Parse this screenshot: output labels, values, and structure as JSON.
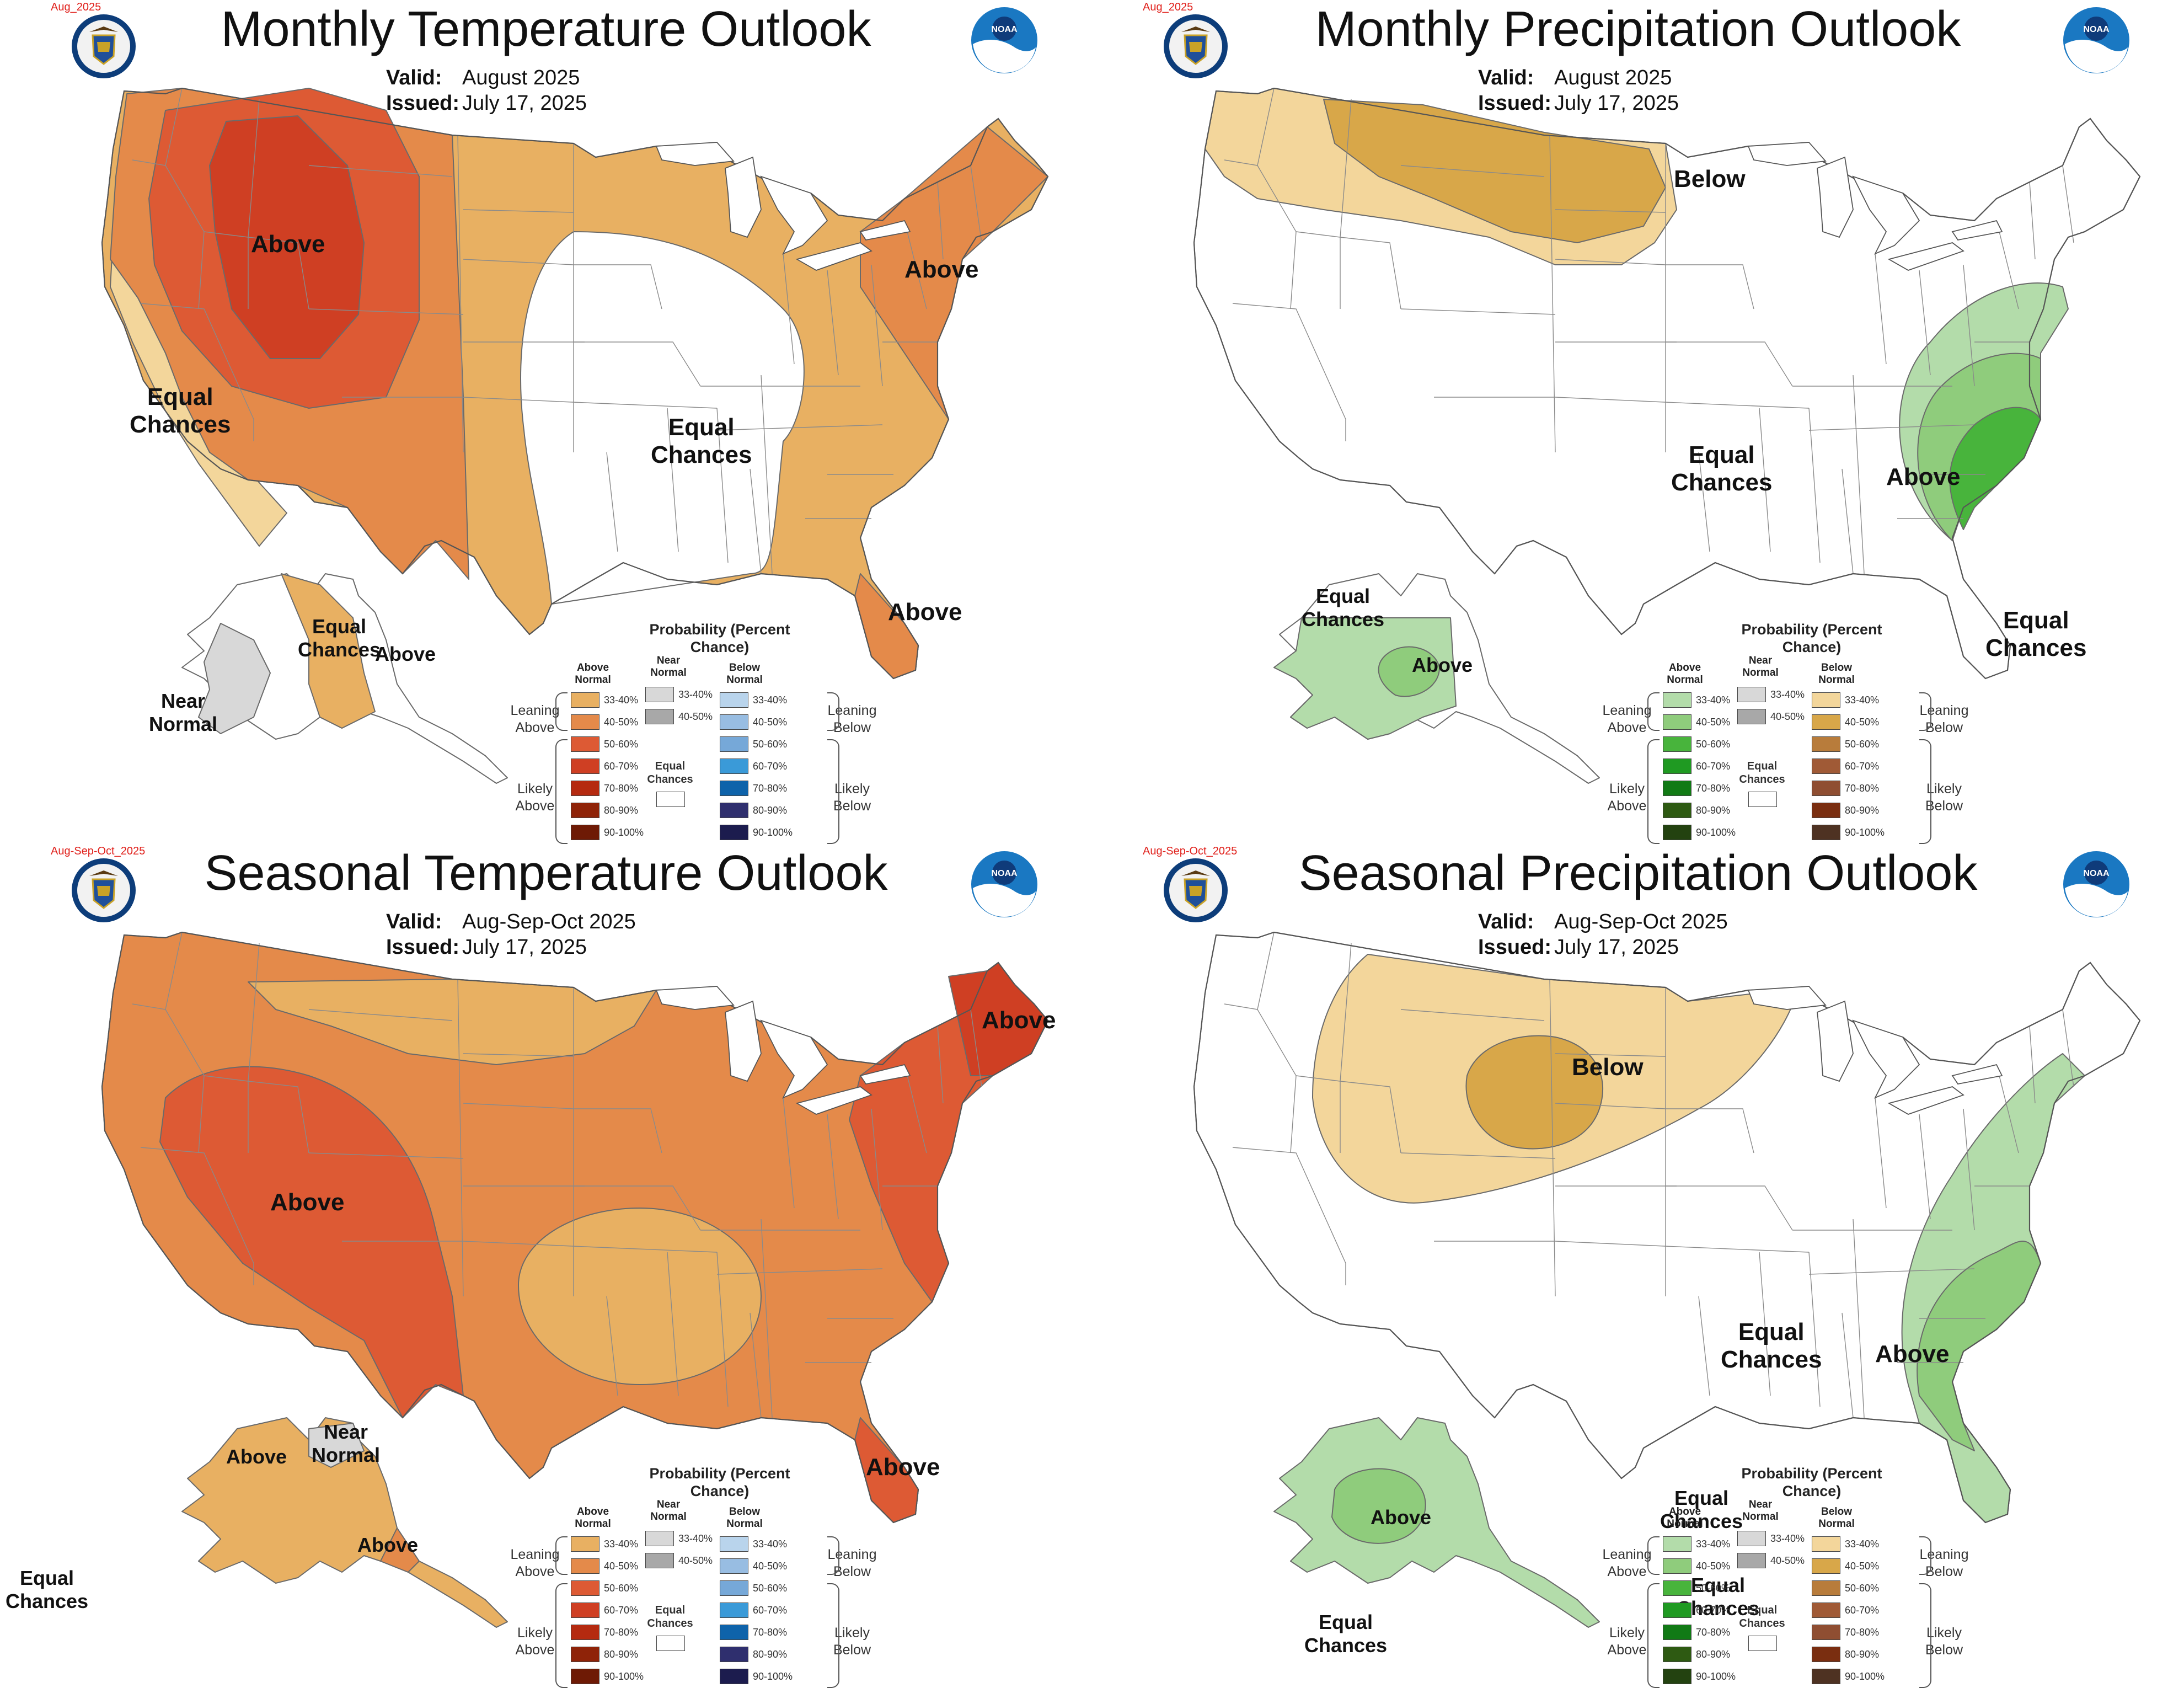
{
  "panels": [
    {
      "tag": "Aug_2025",
      "title": "Monthly Temperature Outlook",
      "valid_label": "Valid:",
      "valid": "August 2025",
      "issued_label": "Issued:",
      "issued": "July 17, 2025",
      "kind": "temp",
      "labels": {
        "a": "Above",
        "b": "Above",
        "c": "Above",
        "d": "Equal Chances",
        "e": "Equal Chances",
        "f": "Equal Chances",
        "g": "Above",
        "h": "Near Normal"
      }
    },
    {
      "tag": "Aug_2025",
      "title": "Monthly Precipitation Outlook",
      "valid_label": "Valid:",
      "valid": "August 2025",
      "issued_label": "Issued:",
      "issued": "July 17, 2025",
      "kind": "precip",
      "labels": {
        "a": "Below",
        "b": "Above",
        "c": "Equal Chances",
        "d": "Equal Chances",
        "e": "Equal Chances",
        "f": "Above"
      }
    },
    {
      "tag": "Aug-Sep-Oct_2025",
      "title": "Seasonal Temperature Outlook",
      "valid_label": "Valid:",
      "valid": "Aug-Sep-Oct 2025",
      "issued_label": "Issued:",
      "issued": "July 17, 2025",
      "kind": "temp",
      "labels": {
        "a": "Above",
        "b": "Above",
        "c": "Above",
        "d": "Above",
        "e": "Near Normal",
        "f": "Above",
        "g": "Equal Chances"
      }
    },
    {
      "tag": "Aug-Sep-Oct_2025",
      "title": "Seasonal Precipitation Outlook",
      "valid_label": "Valid:",
      "valid": "Aug-Sep-Oct 2025",
      "issued_label": "Issued:",
      "issued": "July 17, 2025",
      "kind": "precip",
      "labels": {
        "a": "Below",
        "b": "Above",
        "c": "Equal Chances",
        "d": "Equal Chances",
        "e": "Above",
        "f": "Equal Chances",
        "g": "Equal Chances"
      }
    }
  ],
  "legend": {
    "title": "Probability (Percent Chance)",
    "above_head": "Above Normal",
    "near_head": "Near Normal",
    "below_head": "Below Normal",
    "leaning_above": "Leaning Above",
    "likely_above": "Likely Above",
    "leaning_below": "Leaning Below",
    "likely_below": "Likely Below",
    "equal_chances": "Equal Chances",
    "ranges": [
      "33-40%",
      "40-50%",
      "50-60%",
      "60-70%",
      "70-80%",
      "80-90%",
      "90-100%"
    ],
    "near_ranges": [
      "33-40%",
      "40-50%"
    ],
    "temp_above_colors": [
      "#e8b062",
      "#e48a4a",
      "#dd5a34",
      "#cf3f23",
      "#b52a10",
      "#8f2308",
      "#6e1a05"
    ],
    "temp_below_colors": [
      "#b9d4ec",
      "#98bde2",
      "#76a8d8",
      "#3a9ad8",
      "#0e63aa",
      "#2f2f6e",
      "#1c1c4e"
    ],
    "precip_above_colors": [
      "#b3dcaa",
      "#8fcc7c",
      "#48b43c",
      "#1f9a22",
      "#117a15",
      "#2e5a12",
      "#234210"
    ],
    "precip_below_colors": [
      "#f3d69b",
      "#d8a749",
      "#b87c3b",
      "#a05a36",
      "#8f4e32",
      "#7a2e10",
      "#4e3222"
    ],
    "near_colors": [
      "#d8d8d8",
      "#a8a8a8"
    ]
  }
}
